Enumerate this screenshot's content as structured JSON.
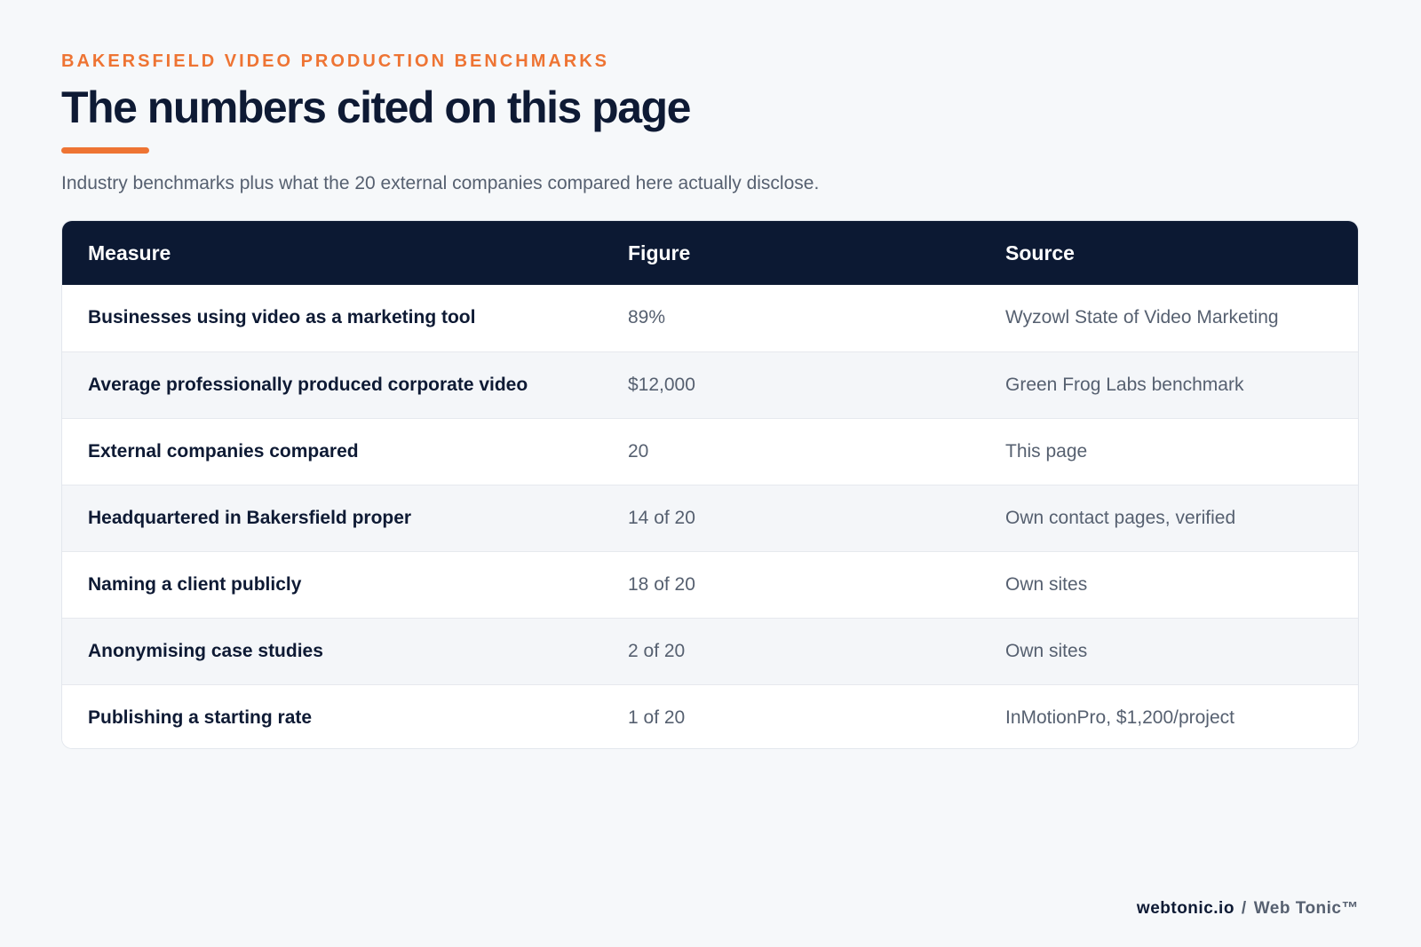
{
  "header": {
    "eyebrow": "BAKERSFIELD VIDEO PRODUCTION BENCHMARKS",
    "title": "The numbers cited on this page",
    "subtitle": "Industry benchmarks plus what the 20 external companies compared here actually disclose."
  },
  "table": {
    "columns": [
      "Measure",
      "Figure",
      "Source"
    ],
    "rows": [
      {
        "measure": "Businesses using video as a marketing tool",
        "figure": "89%",
        "source": "Wyzowl State of Video Marketing"
      },
      {
        "measure": "Average professionally produced corporate video",
        "figure": "$12,000",
        "source": "Green Frog Labs benchmark"
      },
      {
        "measure": "External companies compared",
        "figure": "20",
        "source": "This page"
      },
      {
        "measure": "Headquartered in Bakersfield proper",
        "figure": "14 of 20",
        "source": "Own contact pages, verified"
      },
      {
        "measure": "Naming a client publicly",
        "figure": "18 of 20",
        "source": "Own sites"
      },
      {
        "measure": "Anonymising case studies",
        "figure": "2 of 20",
        "source": "Own sites"
      },
      {
        "measure": "Publishing a starting rate",
        "figure": "1 of 20",
        "source": "InMotionPro, $1,200/project"
      }
    ]
  },
  "footer": {
    "domain": "webtonic.io",
    "separator": "/",
    "brand": "Web Tonic™"
  },
  "colors": {
    "accent": "#ee7433",
    "header_bg": "#0c1933",
    "title_text": "#0e1a34",
    "muted_text": "#566070",
    "page_bg": "#f6f8fa"
  }
}
